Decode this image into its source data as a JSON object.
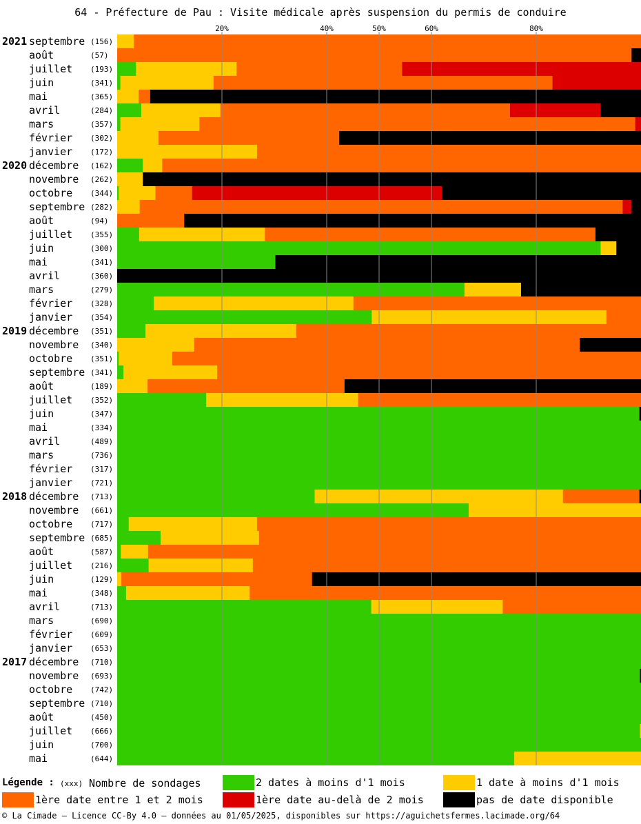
{
  "title": "64 - Préfecture de Pau : Visite médicale après suspension du permis de conduire",
  "legend": {
    "title": "Légende :",
    "count_marker": "(xxx)",
    "count_label": "Nombre de sondages",
    "items": [
      {
        "label": "2 dates à moins d'1 mois",
        "color": "#33cc00",
        "icon": "green-swatch"
      },
      {
        "label": "1 date à moins d'1 mois",
        "color": "#ffcc00",
        "icon": "yellow-swatch"
      },
      {
        "label": "1ère date entre 1 et 2 mois",
        "color": "#ff6600",
        "icon": "orange-swatch"
      },
      {
        "label": "1ère date au-delà de 2 mois",
        "color": "#dd0000",
        "icon": "red-swatch"
      },
      {
        "label": "pas de date disponible",
        "color": "#000000",
        "icon": "black-swatch"
      }
    ]
  },
  "footer": "© La Cimade — Licence CC-By 4.0 — données au 01/05/2025, disponibles sur https://aguichetsfermes.lacimade.org/64",
  "chart_data": {
    "type": "bar",
    "orientation": "horizontal",
    "stacked": true,
    "xlim": [
      0,
      100
    ],
    "x_unit": "%",
    "x_ticks": [
      20,
      40,
      50,
      60,
      80
    ],
    "x_tick_labels": [
      "20%",
      "40%",
      "50%",
      "60%",
      "80%"
    ],
    "grid": true,
    "series_order": [
      "green",
      "yellow",
      "orange",
      "red",
      "black"
    ],
    "rows": [
      {
        "year": "2021",
        "month": "septembre",
        "count": "(156)",
        "green": 0,
        "yellow": 3.2,
        "orange": 96.8,
        "red": 0,
        "black": 0
      },
      {
        "year": "",
        "month": "août",
        "count": "(57)",
        "green": 0,
        "yellow": 0,
        "orange": 98.2,
        "red": 0,
        "black": 1.8
      },
      {
        "year": "",
        "month": "juillet",
        "count": "(193)",
        "green": 3.6,
        "yellow": 19.2,
        "orange": 31.6,
        "red": 45.6,
        "black": 0
      },
      {
        "year": "",
        "month": "juin",
        "count": "(341)",
        "green": 0.6,
        "yellow": 17.8,
        "orange": 64.7,
        "red": 16.9,
        "black": 0
      },
      {
        "year": "",
        "month": "mai",
        "count": "(365)",
        "green": 0,
        "yellow": 4.1,
        "orange": 2.2,
        "red": 0,
        "black": 93.7
      },
      {
        "year": "",
        "month": "avril",
        "count": "(284)",
        "green": 4.6,
        "yellow": 15.1,
        "orange": 55.3,
        "red": 17.3,
        "black": 7.7
      },
      {
        "year": "",
        "month": "mars",
        "count": "(357)",
        "green": 0.6,
        "yellow": 15.1,
        "orange": 83.2,
        "red": 1.1,
        "black": 0
      },
      {
        "year": "",
        "month": "février",
        "count": "(302)",
        "green": 0,
        "yellow": 7.9,
        "orange": 34.5,
        "red": 0,
        "black": 57.6
      },
      {
        "year": "",
        "month": "janvier",
        "count": "(172)",
        "green": 0,
        "yellow": 26.7,
        "orange": 73.3,
        "red": 0,
        "black": 0
      },
      {
        "year": "2020",
        "month": "décembre",
        "count": "(162)",
        "green": 4.9,
        "yellow": 3.7,
        "orange": 91.4,
        "red": 0,
        "black": 0
      },
      {
        "year": "",
        "month": "novembre",
        "count": "(262)",
        "green": 0,
        "yellow": 4.9,
        "orange": 0,
        "red": 0,
        "black": 95.1
      },
      {
        "year": "",
        "month": "octobre",
        "count": "(344)",
        "green": 0.3,
        "yellow": 7.0,
        "orange": 7.0,
        "red": 47.7,
        "black": 38.0
      },
      {
        "year": "",
        "month": "septembre",
        "count": "(282)",
        "green": 0,
        "yellow": 4.3,
        "orange": 92.2,
        "red": 1.7,
        "black": 1.8
      },
      {
        "year": "",
        "month": "août",
        "count": "(94)",
        "green": 0,
        "yellow": 0,
        "orange": 12.8,
        "red": 0,
        "black": 87.2
      },
      {
        "year": "",
        "month": "juillet",
        "count": "(355)",
        "green": 4.2,
        "yellow": 24.0,
        "orange": 63.1,
        "red": 0,
        "black": 8.7
      },
      {
        "year": "",
        "month": "juin",
        "count": "(300)",
        "green": 92.3,
        "yellow": 3.0,
        "orange": 0,
        "red": 0,
        "black": 4.7
      },
      {
        "year": "",
        "month": "mai",
        "count": "(341)",
        "green": 30.2,
        "yellow": 0,
        "orange": 0,
        "red": 0,
        "black": 69.8
      },
      {
        "year": "",
        "month": "avril",
        "count": "(360)",
        "green": 0,
        "yellow": 0,
        "orange": 0,
        "red": 0,
        "black": 100
      },
      {
        "year": "",
        "month": "mars",
        "count": "(279)",
        "green": 66.3,
        "yellow": 10.8,
        "orange": 0,
        "red": 0,
        "black": 22.9
      },
      {
        "year": "",
        "month": "février",
        "count": "(328)",
        "green": 7.0,
        "yellow": 38.1,
        "orange": 54.9,
        "red": 0,
        "black": 0
      },
      {
        "year": "",
        "month": "janvier",
        "count": "(354)",
        "green": 48.6,
        "yellow": 44.8,
        "orange": 6.6,
        "red": 0,
        "black": 0
      },
      {
        "year": "2019",
        "month": "décembre",
        "count": "(351)",
        "green": 5.4,
        "yellow": 28.8,
        "orange": 65.8,
        "red": 0,
        "black": 0
      },
      {
        "year": "",
        "month": "novembre",
        "count": "(340)",
        "green": 0,
        "yellow": 14.7,
        "orange": 73.6,
        "red": 0,
        "black": 11.7
      },
      {
        "year": "",
        "month": "octobre",
        "count": "(351)",
        "green": 0.3,
        "yellow": 10.2,
        "orange": 89.5,
        "red": 0,
        "black": 0
      },
      {
        "year": "",
        "month": "septembre",
        "count": "(341)",
        "green": 1.2,
        "yellow": 17.9,
        "orange": 80.9,
        "red": 0,
        "black": 0
      },
      {
        "year": "",
        "month": "août",
        "count": "(189)",
        "green": 0,
        "yellow": 5.8,
        "orange": 37.6,
        "red": 0,
        "black": 56.6
      },
      {
        "year": "",
        "month": "juillet",
        "count": "(352)",
        "green": 17.0,
        "yellow": 29.0,
        "orange": 54.0,
        "red": 0,
        "black": 0
      },
      {
        "year": "",
        "month": "juin",
        "count": "(347)",
        "green": 99.7,
        "yellow": 0,
        "orange": 0,
        "red": 0,
        "black": 0.3
      },
      {
        "year": "",
        "month": "mai",
        "count": "(334)",
        "green": 100,
        "yellow": 0,
        "orange": 0,
        "red": 0,
        "black": 0
      },
      {
        "year": "",
        "month": "avril",
        "count": "(489)",
        "green": 100,
        "yellow": 0,
        "orange": 0,
        "red": 0,
        "black": 0
      },
      {
        "year": "",
        "month": "mars",
        "count": "(736)",
        "green": 100,
        "yellow": 0,
        "orange": 0,
        "red": 0,
        "black": 0
      },
      {
        "year": "",
        "month": "février",
        "count": "(317)",
        "green": 100,
        "yellow": 0,
        "orange": 0,
        "red": 0,
        "black": 0
      },
      {
        "year": "",
        "month": "janvier",
        "count": "(721)",
        "green": 100,
        "yellow": 0,
        "orange": 0,
        "red": 0,
        "black": 0
      },
      {
        "year": "2018",
        "month": "décembre",
        "count": "(713)",
        "green": 37.7,
        "yellow": 47.4,
        "orange": 14.6,
        "red": 0,
        "black": 0.3
      },
      {
        "year": "",
        "month": "novembre",
        "count": "(661)",
        "green": 67.1,
        "yellow": 32.9,
        "orange": 0,
        "red": 0,
        "black": 0
      },
      {
        "year": "",
        "month": "octobre",
        "count": "(717)",
        "green": 2.2,
        "yellow": 24.5,
        "orange": 73.3,
        "red": 0,
        "black": 0
      },
      {
        "year": "",
        "month": "septembre",
        "count": "(685)",
        "green": 8.3,
        "yellow": 18.8,
        "orange": 72.9,
        "red": 0,
        "black": 0
      },
      {
        "year": "",
        "month": "août",
        "count": "(587)",
        "green": 0.7,
        "yellow": 5.2,
        "orange": 94.1,
        "red": 0,
        "black": 0
      },
      {
        "year": "",
        "month": "juillet",
        "count": "(216)",
        "green": 6.0,
        "yellow": 19.9,
        "orange": 74.1,
        "red": 0,
        "black": 0
      },
      {
        "year": "",
        "month": "juin",
        "count": "(129)",
        "green": 0,
        "yellow": 0.8,
        "orange": 36.4,
        "red": 0,
        "black": 62.8
      },
      {
        "year": "",
        "month": "mai",
        "count": "(348)",
        "green": 1.7,
        "yellow": 23.6,
        "orange": 74.7,
        "red": 0,
        "black": 0
      },
      {
        "year": "",
        "month": "avril",
        "count": "(713)",
        "green": 48.5,
        "yellow": 25.1,
        "orange": 26.4,
        "red": 0,
        "black": 0
      },
      {
        "year": "",
        "month": "mars",
        "count": "(690)",
        "green": 100,
        "yellow": 0,
        "orange": 0,
        "red": 0,
        "black": 0
      },
      {
        "year": "",
        "month": "février",
        "count": "(609)",
        "green": 100,
        "yellow": 0,
        "orange": 0,
        "red": 0,
        "black": 0
      },
      {
        "year": "",
        "month": "janvier",
        "count": "(653)",
        "green": 100,
        "yellow": 0,
        "orange": 0,
        "red": 0,
        "black": 0
      },
      {
        "year": "2017",
        "month": "décembre",
        "count": "(710)",
        "green": 100,
        "yellow": 0,
        "orange": 0,
        "red": 0,
        "black": 0
      },
      {
        "year": "",
        "month": "novembre",
        "count": "(693)",
        "green": 99.8,
        "yellow": 0,
        "orange": 0,
        "red": 0,
        "black": 0.2
      },
      {
        "year": "",
        "month": "octobre",
        "count": "(742)",
        "green": 100,
        "yellow": 0,
        "orange": 0,
        "red": 0,
        "black": 0
      },
      {
        "year": "",
        "month": "septembre",
        "count": "(710)",
        "green": 100,
        "yellow": 0,
        "orange": 0,
        "red": 0,
        "black": 0
      },
      {
        "year": "",
        "month": "août",
        "count": "(450)",
        "green": 100,
        "yellow": 0,
        "orange": 0,
        "red": 0,
        "black": 0
      },
      {
        "year": "",
        "month": "juillet",
        "count": "(666)",
        "green": 99.8,
        "yellow": 0.2,
        "orange": 0,
        "red": 0,
        "black": 0
      },
      {
        "year": "",
        "month": "juin",
        "count": "(700)",
        "green": 100,
        "yellow": 0,
        "orange": 0,
        "red": 0,
        "black": 0
      },
      {
        "year": "",
        "month": "mai",
        "count": "(644)",
        "green": 75.8,
        "yellow": 24.2,
        "orange": 0,
        "red": 0,
        "black": 0
      }
    ]
  }
}
